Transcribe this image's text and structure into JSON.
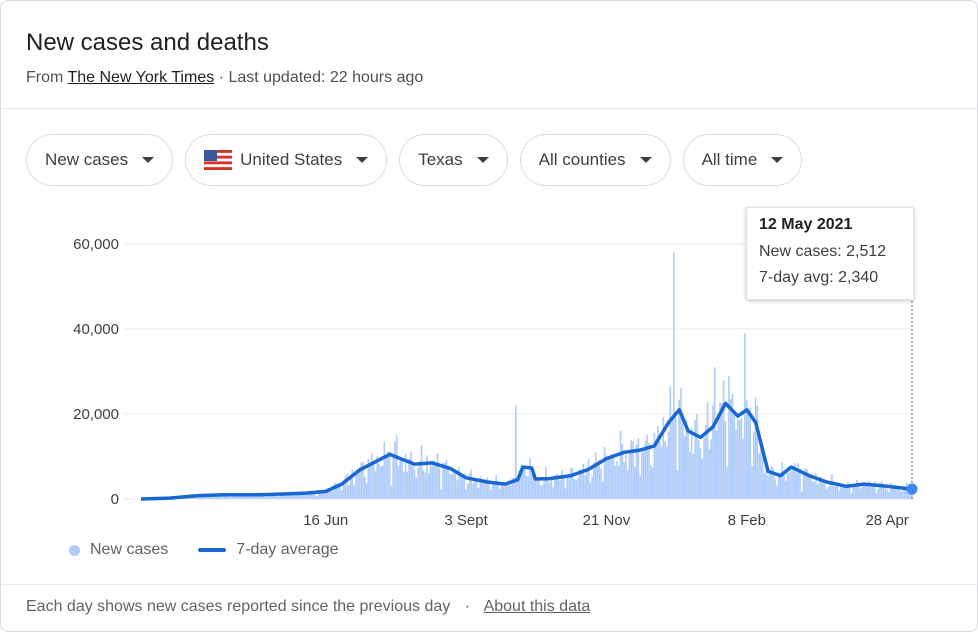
{
  "header": {
    "title": "New cases and deaths",
    "source_prefix": "From",
    "source_name": "The New York Times",
    "updated": "· Last updated: 22 hours ago"
  },
  "filters": {
    "metric": "New cases",
    "country": "United States",
    "state": "Texas",
    "county": "All counties",
    "range": "All time"
  },
  "tooltip": {
    "date": "12 May 2021",
    "new_cases": "New cases: 2,512",
    "avg": "7-day avg: 2,340"
  },
  "legend": {
    "cases": "New cases",
    "avg": "7-day average"
  },
  "footer": {
    "note": "Each day shows new cases reported since the previous day",
    "separator": "·",
    "about": "About this data"
  },
  "colors": {
    "bars": "#aecbfa",
    "line": "#1967d2",
    "grid": "#e8eaed"
  },
  "chart_data": {
    "type": "bar",
    "x_start": "2020-03-04",
    "x_end": "2021-05-12",
    "ylim": [
      0,
      60000
    ],
    "y_ticks": [
      "60,000",
      "40,000",
      "20,000",
      "0"
    ],
    "y_tick_values": [
      60000,
      40000,
      20000,
      0
    ],
    "x_ticks": [
      {
        "label": "16 Jun",
        "date": "2020-06-16"
      },
      {
        "label": "3 Sept",
        "date": "2020-09-03"
      },
      {
        "label": "21 Nov",
        "date": "2020-11-21"
      },
      {
        "label": "8 Feb",
        "date": "2021-02-08"
      },
      {
        "label": "28 Apr",
        "date": "2021-04-28"
      }
    ],
    "series": [
      {
        "name": "7-day average",
        "style": "line",
        "points": [
          [
            "2020-03-04",
            0
          ],
          [
            "2020-03-20",
            200
          ],
          [
            "2020-04-05",
            800
          ],
          [
            "2020-04-20",
            1000
          ],
          [
            "2020-05-10",
            1000
          ],
          [
            "2020-05-25",
            1200
          ],
          [
            "2020-06-05",
            1400
          ],
          [
            "2020-06-16",
            1800
          ],
          [
            "2020-06-25",
            3500
          ],
          [
            "2020-07-05",
            6800
          ],
          [
            "2020-07-15",
            9000
          ],
          [
            "2020-07-22",
            10500
          ],
          [
            "2020-07-28",
            9500
          ],
          [
            "2020-08-05",
            8200
          ],
          [
            "2020-08-15",
            8500
          ],
          [
            "2020-08-25",
            7200
          ],
          [
            "2020-09-03",
            5000
          ],
          [
            "2020-09-15",
            4000
          ],
          [
            "2020-09-25",
            3500
          ],
          [
            "2020-10-02",
            4500
          ],
          [
            "2020-10-05",
            7500
          ],
          [
            "2020-10-10",
            7300
          ],
          [
            "2020-10-12",
            4700
          ],
          [
            "2020-10-20",
            4800
          ],
          [
            "2020-11-01",
            5500
          ],
          [
            "2020-11-11",
            7000
          ],
          [
            "2020-11-21",
            9500
          ],
          [
            "2020-12-01",
            11000
          ],
          [
            "2020-12-10",
            11500
          ],
          [
            "2020-12-18",
            12500
          ],
          [
            "2020-12-26",
            18000
          ],
          [
            "2021-01-01",
            21000
          ],
          [
            "2021-01-06",
            16000
          ],
          [
            "2021-01-13",
            14500
          ],
          [
            "2021-01-20",
            17000
          ],
          [
            "2021-01-27",
            22500
          ],
          [
            "2021-02-03",
            19500
          ],
          [
            "2021-02-08",
            21000
          ],
          [
            "2021-02-13",
            18000
          ],
          [
            "2021-02-20",
            6500
          ],
          [
            "2021-02-27",
            5500
          ],
          [
            "2021-03-05",
            7500
          ],
          [
            "2021-03-15",
            5500
          ],
          [
            "2021-03-25",
            4000
          ],
          [
            "2021-04-05",
            3000
          ],
          [
            "2021-04-15",
            3500
          ],
          [
            "2021-04-28",
            3000
          ],
          [
            "2021-05-12",
            2340
          ]
        ]
      },
      {
        "name": "New cases",
        "style": "bars",
        "spikes": [
          [
            "2020-07-26",
            15000
          ],
          [
            "2020-10-01",
            22000
          ],
          [
            "2020-12-29",
            58000
          ],
          [
            "2021-01-21",
            31000
          ],
          [
            "2021-01-29",
            29000
          ],
          [
            "2021-02-07",
            39000
          ],
          [
            "2021-05-12",
            2512
          ]
        ]
      }
    ]
  }
}
